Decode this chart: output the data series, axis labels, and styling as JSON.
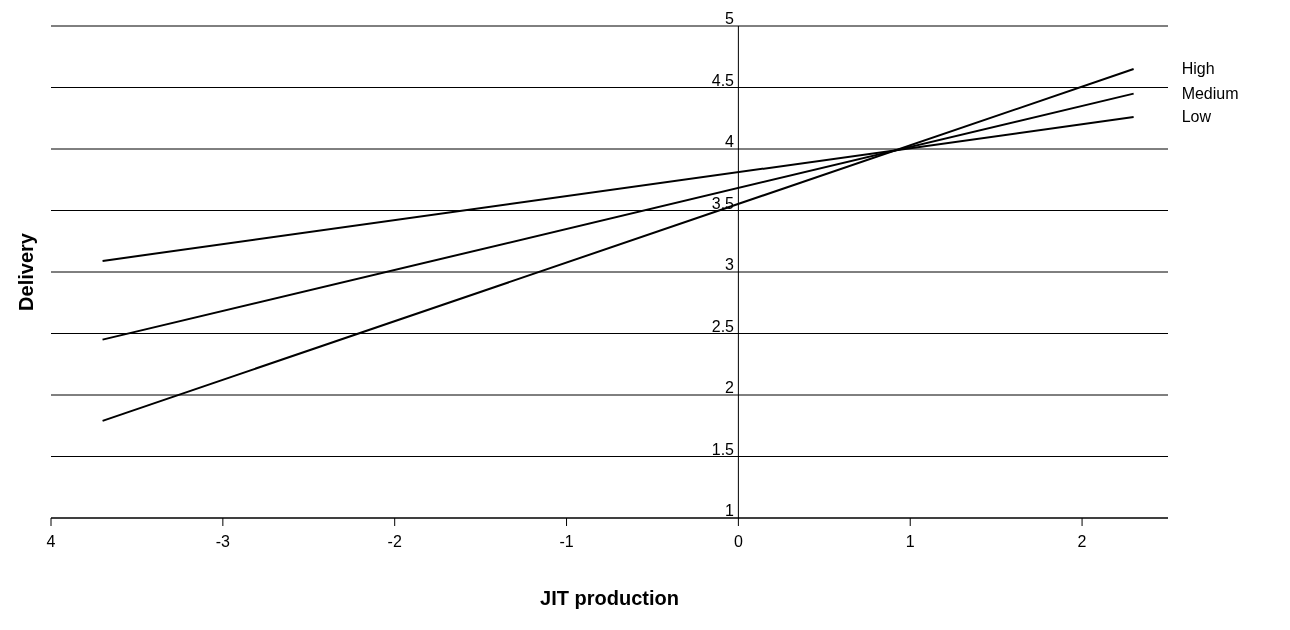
{
  "chart_data": {
    "type": "line",
    "xlabel": "JIT production",
    "ylabel": "Delivery",
    "xlim": [
      -4,
      2.5
    ],
    "xticks": [
      {
        "value": -4,
        "label": "4"
      },
      -3,
      -2,
      -1,
      0,
      1,
      2
    ],
    "ylim": [
      1,
      5
    ],
    "yticks": [
      1,
      1.5,
      2,
      2.5,
      3,
      3.5,
      4,
      4.5,
      5
    ],
    "grid": "y",
    "legend": false,
    "marker": "none",
    "line_style": "solid",
    "x": [
      -3.7,
      2.3
    ],
    "series": [
      {
        "name": "High",
        "color": "#000000",
        "values": [
          1.79,
          4.65
        ]
      },
      {
        "name": "Medium",
        "color": "#000000",
        "values": [
          2.45,
          4.45
        ]
      },
      {
        "name": "Low",
        "color": "#000000",
        "values": [
          3.09,
          4.26
        ]
      }
    ]
  }
}
